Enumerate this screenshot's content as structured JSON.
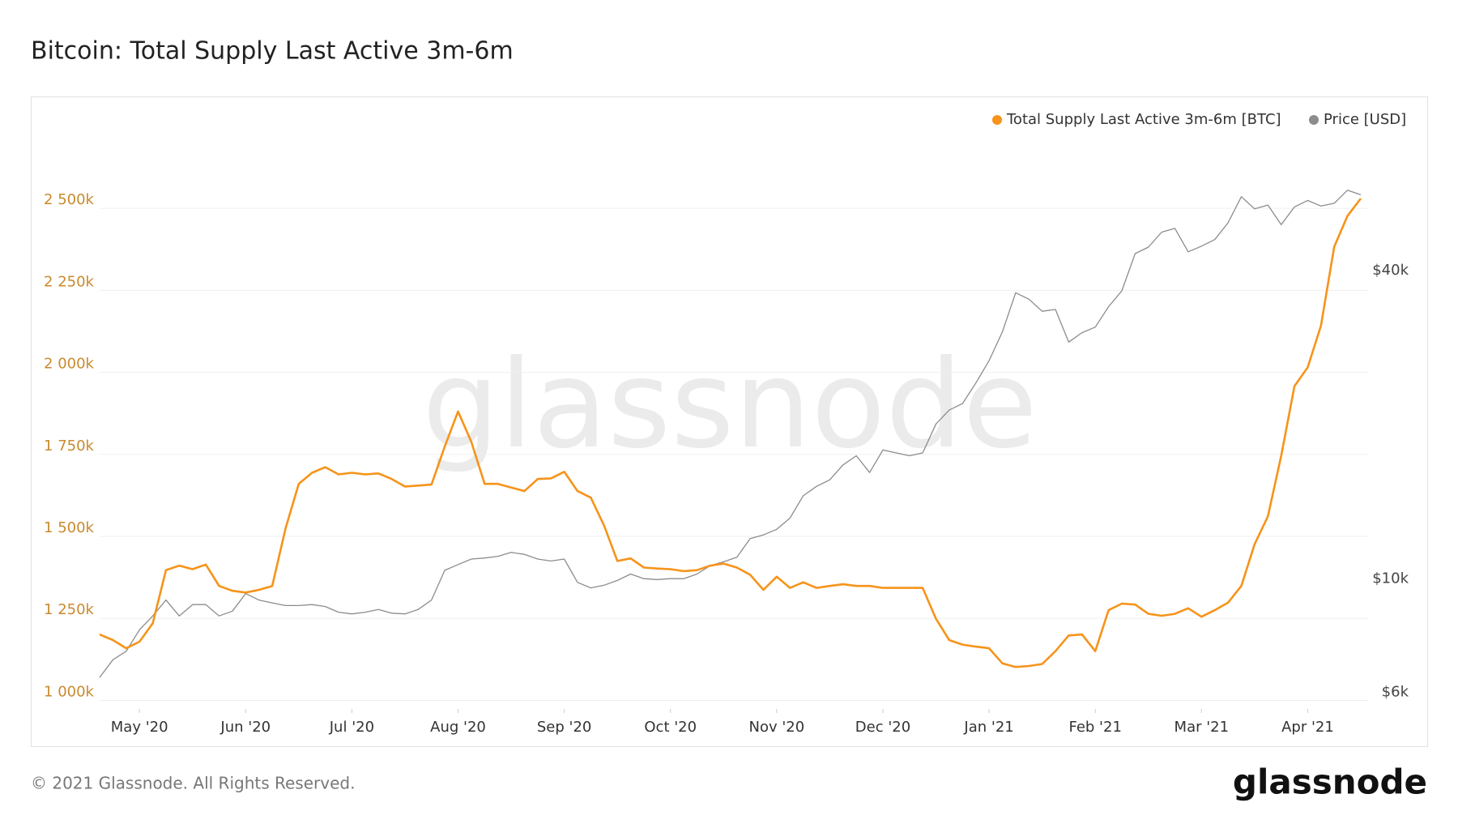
{
  "chart_data": {
    "type": "line",
    "title": "Bitcoin: Total Supply Last Active 3m-6m",
    "footer": "© 2021 Glassnode. All Rights Reserved.",
    "logo": "glassnode",
    "watermark": "glassnode",
    "categories": [
      null,
      null,
      null,
      "May '20",
      null,
      null,
      null,
      null,
      null,
      null,
      null,
      "Jun '20",
      null,
      null,
      null,
      null,
      null,
      null,
      null,
      "Jul '20",
      null,
      null,
      null,
      null,
      null,
      null,
      null,
      "Aug '20",
      null,
      null,
      null,
      null,
      null,
      null,
      null,
      "Sep '20",
      null,
      null,
      null,
      null,
      null,
      null,
      null,
      "Oct '20",
      null,
      null,
      null,
      null,
      null,
      null,
      null,
      "Nov '20",
      null,
      null,
      null,
      null,
      null,
      null,
      null,
      "Dec '20",
      null,
      null,
      null,
      null,
      null,
      null,
      null,
      "Jan '21",
      null,
      null,
      null,
      null,
      null,
      null,
      null,
      "Feb '21",
      null,
      null,
      null,
      null,
      null,
      null,
      null,
      "Mar '21",
      null,
      null,
      null,
      null,
      null,
      null,
      null,
      "Apr '21",
      null,
      null,
      null,
      null
    ],
    "series": [
      {
        "name": "Total Supply Last Active 3m-6m [BTC]",
        "color": "#f7931a",
        "axis": "y",
        "values": [
          1201,
          1184,
          1159,
          1179,
          1235,
          1397,
          1411,
          1400,
          1414,
          1349,
          1334,
          1329,
          1337,
          1349,
          1524,
          1660,
          1694,
          1711,
          1689,
          1694,
          1689,
          1692,
          1675,
          1652,
          1655,
          1658,
          1774,
          1881,
          1788,
          1660,
          1660,
          1649,
          1638,
          1675,
          1677,
          1697,
          1638,
          1618,
          1533,
          1425,
          1433,
          1405,
          1402,
          1400,
          1394,
          1397,
          1411,
          1417,
          1405,
          1383,
          1337,
          1377,
          1343,
          1360,
          1343,
          1349,
          1354,
          1349,
          1349,
          1343,
          1343,
          1343,
          1343,
          1249,
          1184,
          1170,
          1164,
          1159,
          1113,
          1102,
          1105,
          1111,
          1150,
          1198,
          1201,
          1150,
          1275,
          1295,
          1292,
          1264,
          1258,
          1264,
          1281,
          1255,
          1275,
          1298,
          1349,
          1476,
          1561,
          1745,
          1958,
          2015,
          2142,
          2383,
          2477,
          2530
        ]
      },
      {
        "name": "Price [USD]",
        "color": "#8c8c8c",
        "axis": "y2",
        "values": [
          6660,
          7210,
          7490,
          8250,
          8780,
          9430,
          8780,
          9240,
          9240,
          8780,
          8970,
          9710,
          9430,
          9310,
          9200,
          9200,
          9240,
          9160,
          8930,
          8860,
          8930,
          9040,
          8890,
          8860,
          9040,
          9430,
          10780,
          11060,
          11340,
          11390,
          11480,
          11680,
          11580,
          11340,
          11240,
          11340,
          10210,
          9960,
          10080,
          10300,
          10600,
          10380,
          10340,
          10380,
          10380,
          10600,
          11010,
          11200,
          11430,
          12430,
          12640,
          12960,
          13630,
          15070,
          15720,
          16190,
          17310,
          18040,
          16730,
          18510,
          18270,
          18040,
          18270,
          20810,
          22150,
          22810,
          25010,
          27660,
          31480,
          37540,
          36460,
          34530,
          34820,
          30070,
          31360,
          32160,
          35260,
          37860,
          44750,
          46080,
          49280,
          50120,
          45120,
          46280,
          47660,
          51390,
          57780,
          54720,
          55660,
          50970,
          55190,
          56830,
          55410,
          56120,
          59510,
          58300
        ]
      }
    ],
    "ylim": [
      974,
      2730
    ],
    "yticks": [
      {
        "value": 1000,
        "label": "1 000k"
      },
      {
        "value": 1250,
        "label": "1 250k"
      },
      {
        "value": 1500,
        "label": "1 500k"
      },
      {
        "value": 1750,
        "label": "1 750k"
      },
      {
        "value": 2000,
        "label": "2 000k"
      },
      {
        "value": 2250,
        "label": "2 250k"
      },
      {
        "value": 2500,
        "label": "2 500k"
      }
    ],
    "yscale": "linear",
    "y2lim": [
      5780,
      77000
    ],
    "y2ticks": [
      {
        "value": 6000,
        "label": "$6k"
      },
      {
        "value": 10000,
        "label": "$10k"
      },
      {
        "value": 40000,
        "label": "$40k"
      }
    ],
    "y2scale": "log",
    "grid": true,
    "legend": "top-right"
  }
}
